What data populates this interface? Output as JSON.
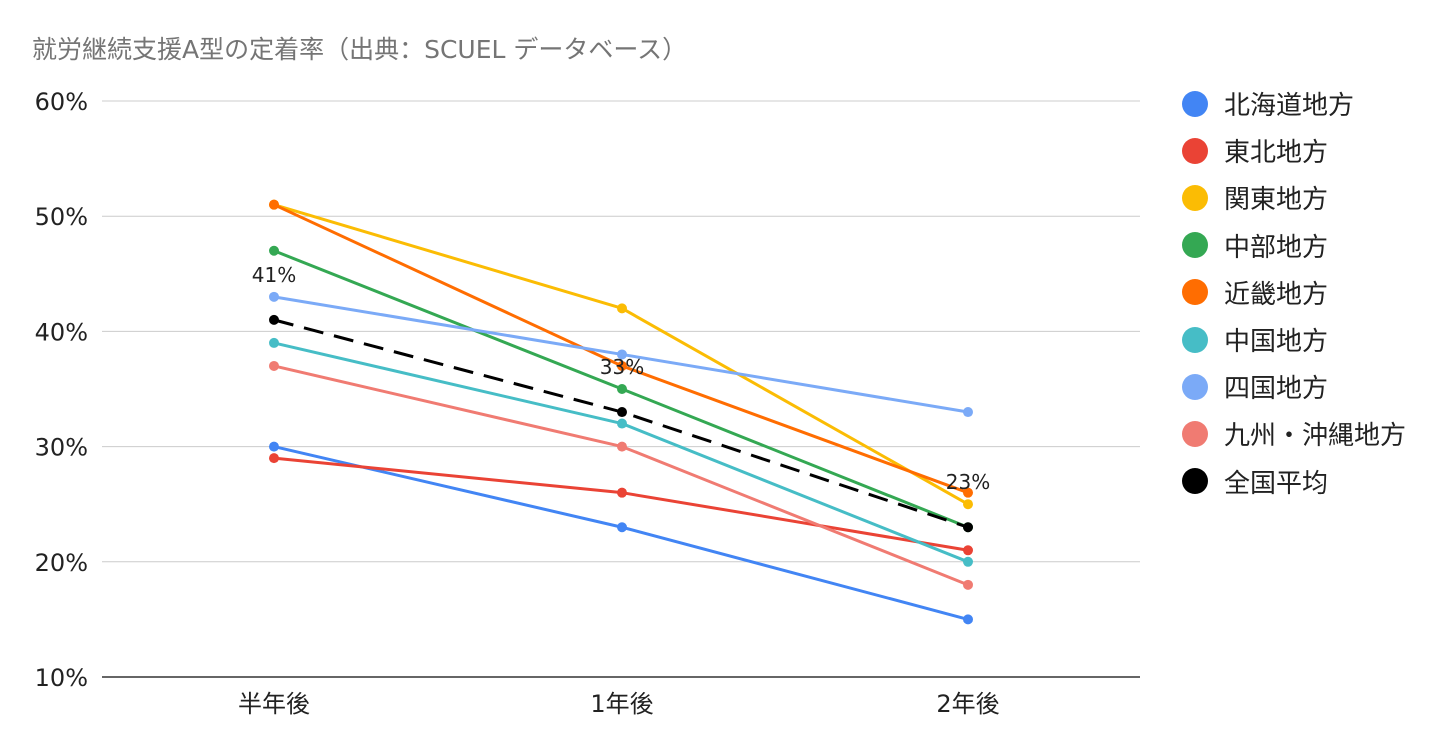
{
  "chart_data": {
    "type": "line",
    "title": "就労継続支援A型の定着率（出典：SCUEL データベース）",
    "categories": [
      "半年後",
      "1年後",
      "2年後"
    ],
    "y_ticks": [
      "10%",
      "20%",
      "30%",
      "40%",
      "50%",
      "60%"
    ],
    "ylim": [
      10,
      60
    ],
    "grid": true,
    "legend_position": "right",
    "series": [
      {
        "name": "北海道地方",
        "color": "#4285F4",
        "values": [
          30,
          23,
          15
        ]
      },
      {
        "name": "東北地方",
        "color": "#EA4335",
        "values": [
          29,
          26,
          21
        ]
      },
      {
        "name": "関東地方",
        "color": "#FBBC04",
        "values": [
          51,
          42,
          25
        ]
      },
      {
        "name": "中部地方",
        "color": "#34A853",
        "values": [
          47,
          35,
          23
        ]
      },
      {
        "name": "近畿地方",
        "color": "#FF6D01",
        "values": [
          51,
          37,
          26
        ]
      },
      {
        "name": "中国地方",
        "color": "#46BDC6",
        "values": [
          39,
          32,
          20
        ]
      },
      {
        "name": "四国地方",
        "color": "#7BAAF7",
        "values": [
          43,
          38,
          33
        ]
      },
      {
        "name": "九州・沖縄地方",
        "color": "#F07B72",
        "values": [
          37,
          30,
          18
        ]
      },
      {
        "name": "全国平均",
        "color": "#000000",
        "values": [
          41,
          33,
          23
        ],
        "dashed": true,
        "data_labels": [
          "41%",
          "33%",
          "23%"
        ]
      }
    ]
  }
}
